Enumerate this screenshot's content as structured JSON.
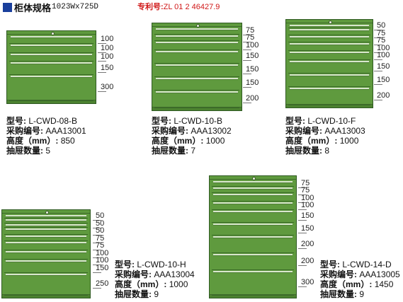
{
  "header": {
    "title": "柜体规格",
    "size": "1023Wx725D",
    "patent_label": "专利号:",
    "patent_no": "ZL 01 2 46427.9"
  },
  "labels": {
    "model": "型号:",
    "code": "采购编号:",
    "height": "高度（mm）:",
    "drawers": "抽屉数量:"
  },
  "cabinets": [
    {
      "model": "L-CWD-08-B",
      "code": "AAA13001",
      "height": "850",
      "drawers": "5",
      "drawer_heights": [
        "100",
        "100",
        "100",
        "150",
        "300"
      ]
    },
    {
      "model": "L-CWD-10-B",
      "code": "AAA13002",
      "height": "1000",
      "drawers": "7",
      "drawer_heights": [
        "75",
        "75",
        "100",
        "150",
        "150",
        "150",
        "200"
      ]
    },
    {
      "model": "L-CWD-10-F",
      "code": "AAA13003",
      "height": "1000",
      "drawers": "8",
      "drawer_heights": [
        "50",
        "75",
        "75",
        "100",
        "100",
        "150",
        "150",
        "200"
      ]
    },
    {
      "model": "L-CWD-10-H",
      "code": "AAA13004",
      "height": "1000",
      "drawers": "9",
      "drawer_heights": [
        "50",
        "50",
        "50",
        "75",
        "75",
        "100",
        "100",
        "150",
        "250"
      ]
    },
    {
      "model": "L-CWD-14-D",
      "code": "AAA13005",
      "height": "1450",
      "drawers": "9",
      "drawer_heights": [
        "75",
        "75",
        "100",
        "100",
        "150",
        "150",
        "200",
        "200",
        "300"
      ]
    }
  ],
  "colors": {
    "cabinet": "#5f9a3e",
    "header_block": "#1a3f9c",
    "patent_text": "#d01818"
  }
}
